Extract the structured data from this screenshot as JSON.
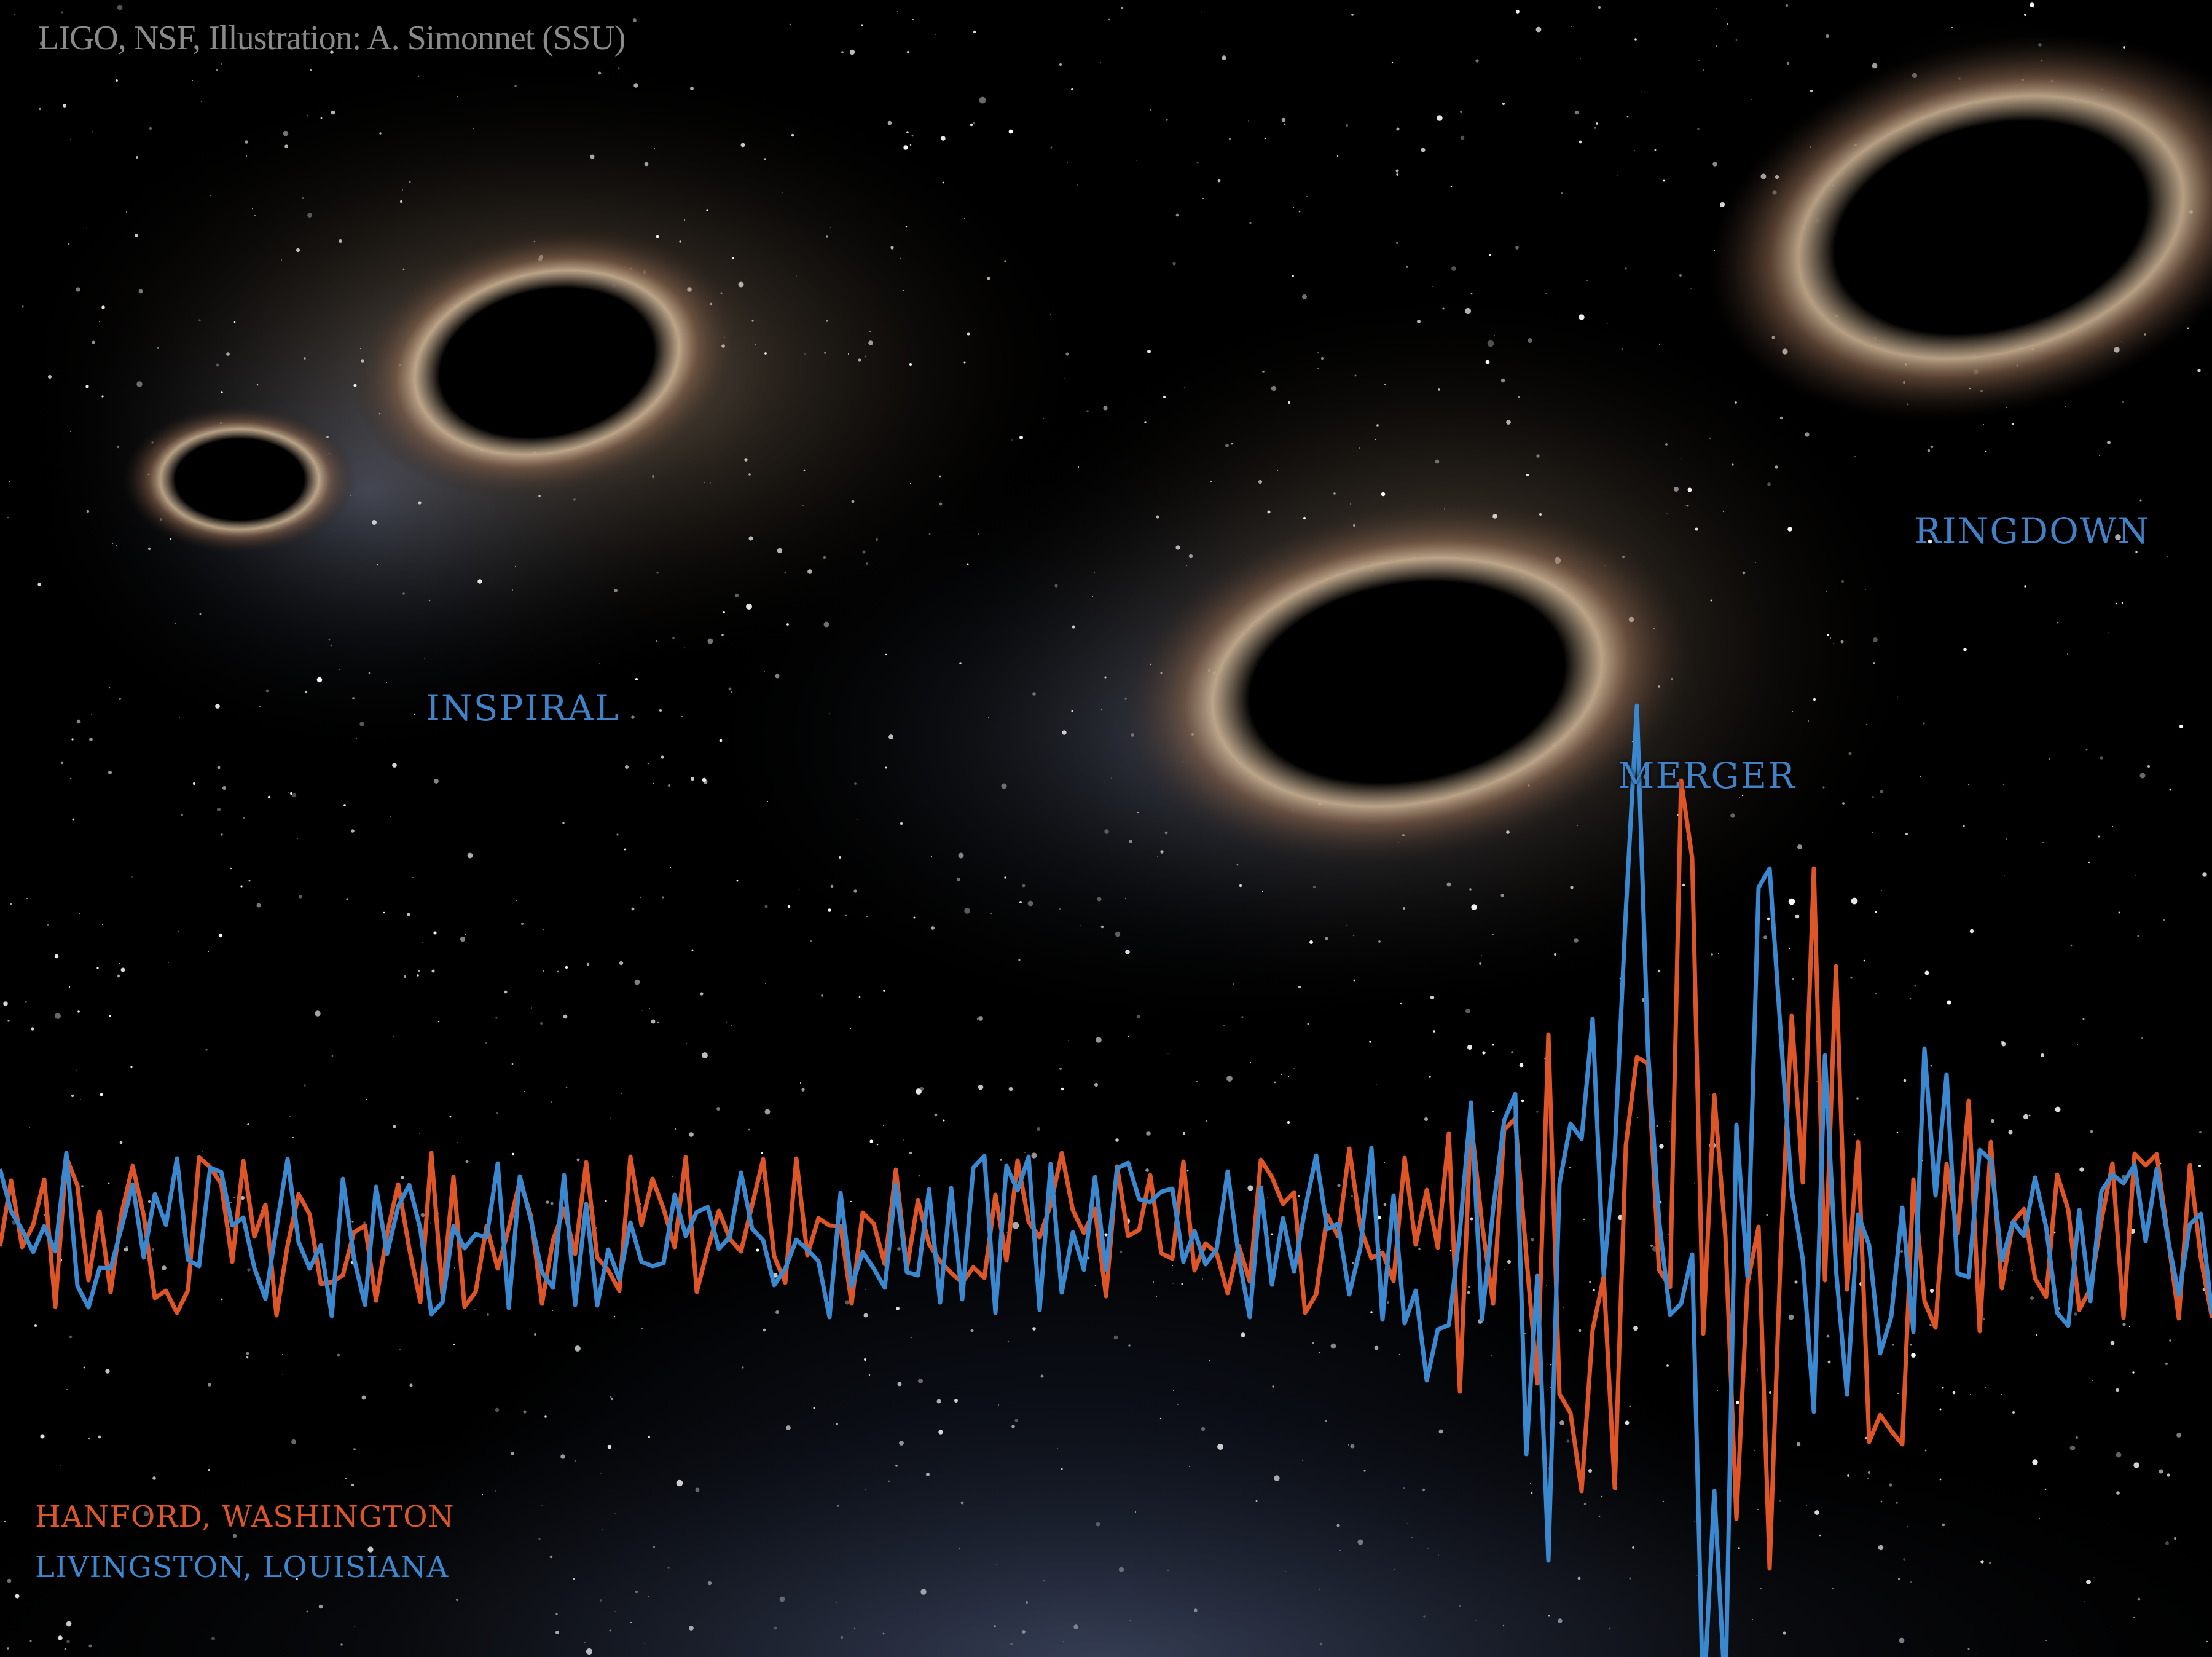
{
  "credit": "LIGO, NSF, Illustration: A. Simonnet (SSU)",
  "stages": {
    "inspiral": "INSPIRAL",
    "merger": "MERGER",
    "ringdown": "RINGDOWN"
  },
  "legend": {
    "hanford": "HANFORD, WASHINGTON",
    "livingston": "LIVINGSTON, LOUISIANA"
  },
  "colors": {
    "hanford": "#de5527",
    "livingston": "#3a88cf",
    "stage_label": "#3f82c8",
    "credit": "#8a8a8a"
  }
}
